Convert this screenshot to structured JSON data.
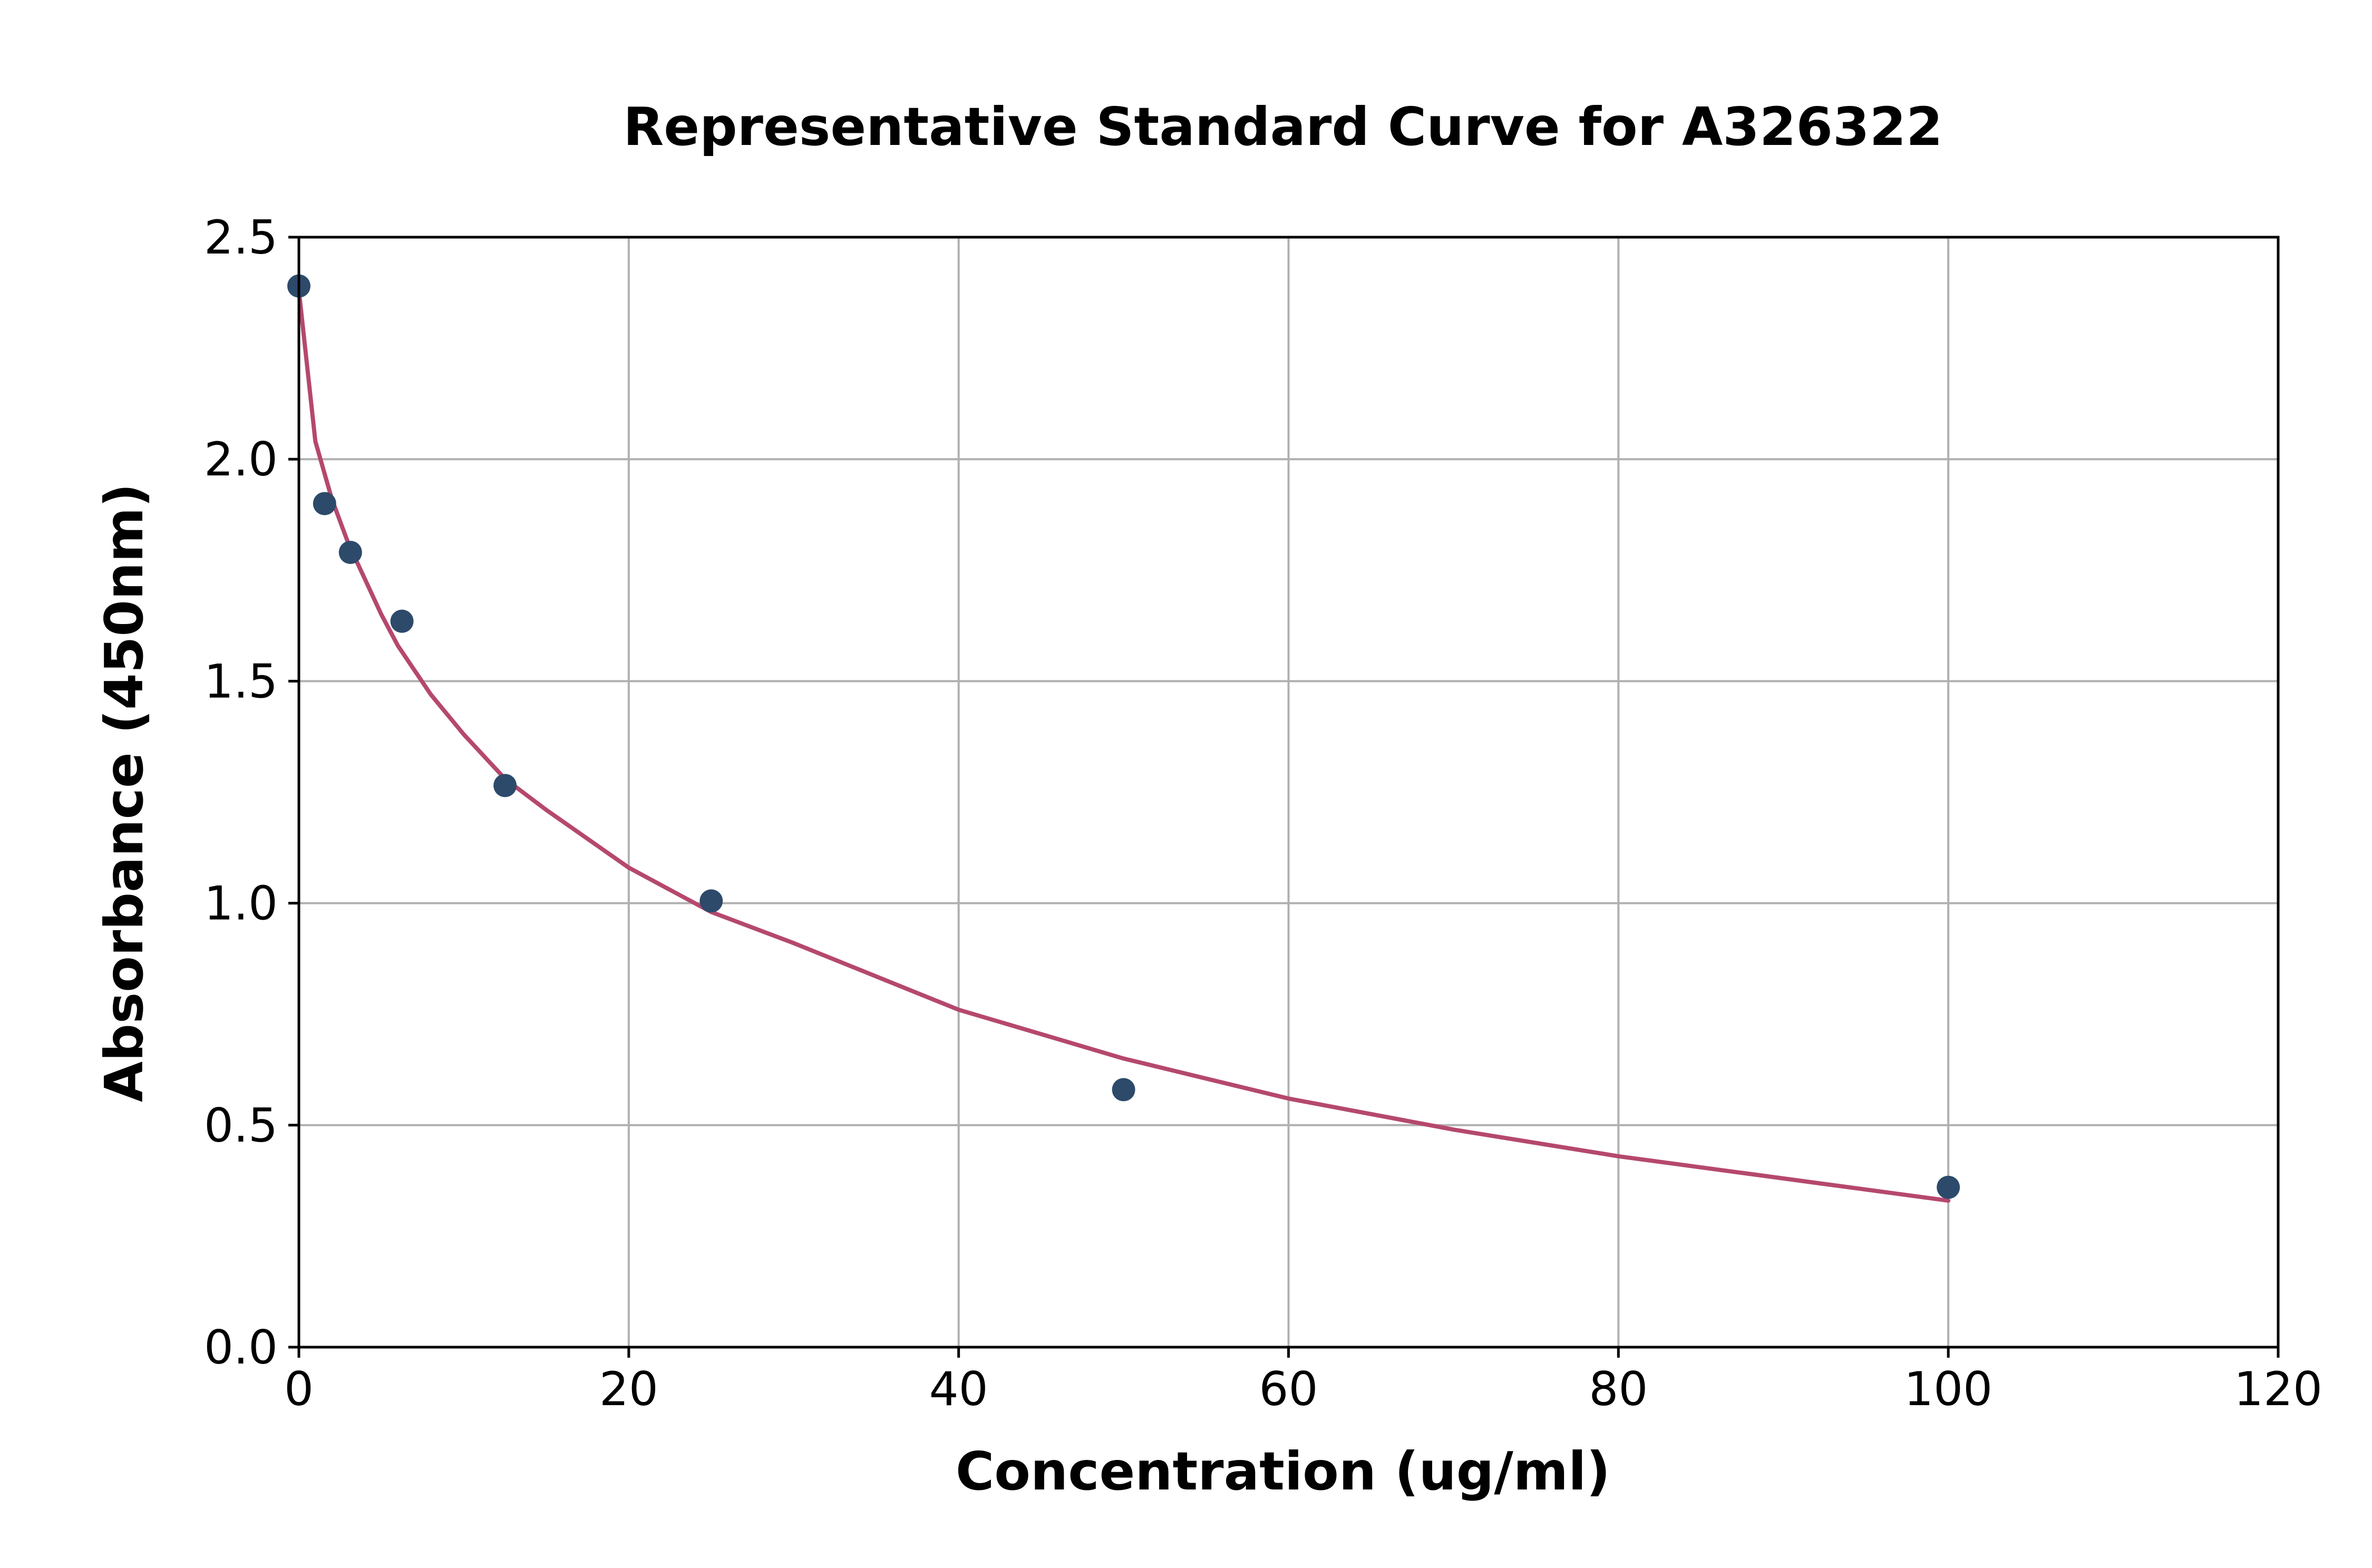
{
  "chart_data": {
    "type": "scatter",
    "title": "Representative Standard Curve for A326322",
    "xlabel": "Concentration (ug/ml)",
    "ylabel": "Absorbance (450nm)",
    "xlim": [
      0,
      120
    ],
    "ylim": [
      0,
      2.5
    ],
    "xticks": [
      0,
      20,
      40,
      60,
      80,
      100,
      120
    ],
    "xtick_labels": [
      "0",
      "20",
      "40",
      "60",
      "80",
      "100",
      "120"
    ],
    "yticks": [
      0,
      0.5,
      1.0,
      1.5,
      2.0,
      2.5
    ],
    "ytick_labels": [
      "0.0",
      "0.5",
      "1.0",
      "1.5",
      "2.0",
      "2.5"
    ],
    "grid": true,
    "legend": "none",
    "series": [
      {
        "kind": "points",
        "color": "#2d4a6b",
        "x": [
          0,
          1.56,
          3.125,
          6.25,
          12.5,
          25,
          50,
          100
        ],
        "y": [
          2.39,
          1.9,
          1.79,
          1.635,
          1.265,
          1.005,
          0.58,
          0.36
        ]
      },
      {
        "kind": "fit-curve",
        "color": "#b5486e",
        "x": [
          0,
          1,
          2,
          3,
          4,
          5,
          6,
          8,
          10,
          12.5,
          15,
          20,
          25,
          30,
          40,
          50,
          60,
          70,
          80,
          90,
          100
        ],
        "y": [
          2.38,
          2.04,
          1.91,
          1.81,
          1.73,
          1.65,
          1.58,
          1.47,
          1.38,
          1.28,
          1.21,
          1.08,
          0.98,
          0.91,
          0.76,
          0.65,
          0.56,
          0.49,
          0.43,
          0.38,
          0.33
        ]
      }
    ]
  }
}
